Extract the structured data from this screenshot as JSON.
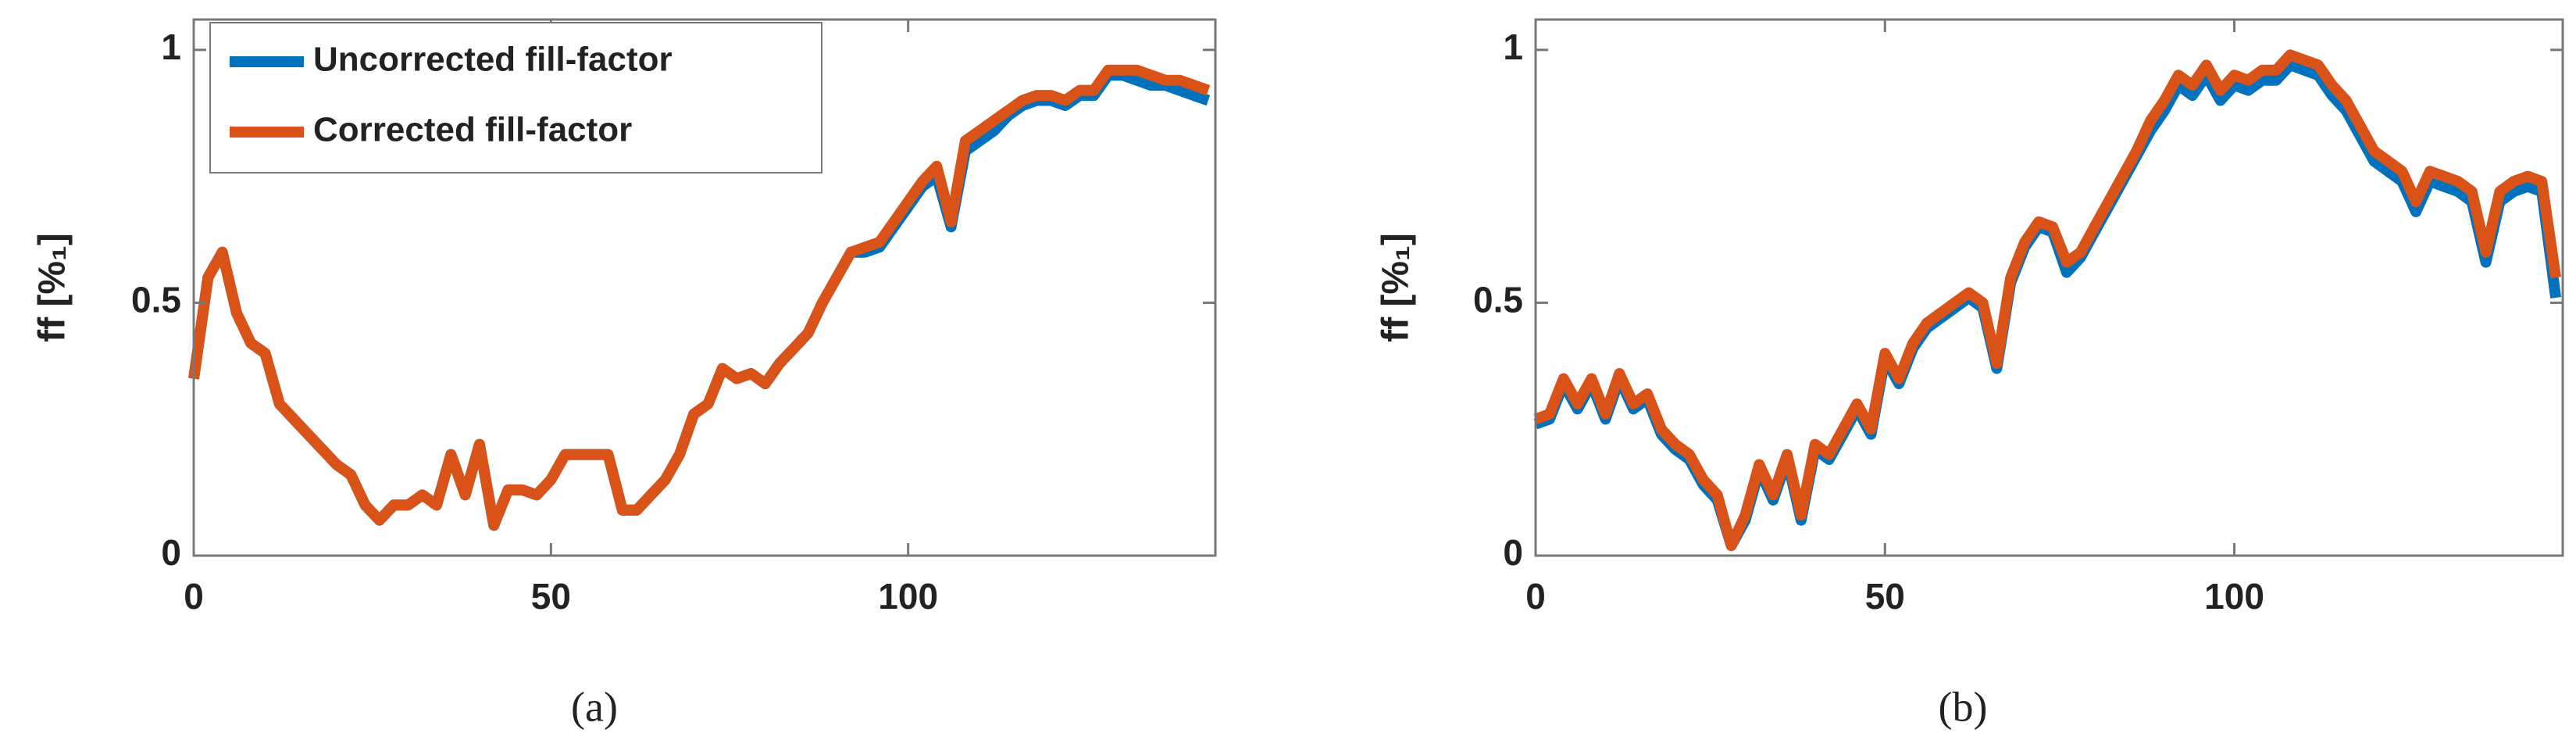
{
  "chart_data": [
    {
      "type": "line",
      "ylabel": "ff [%₁]",
      "caption": "(a)",
      "legend": "upper left",
      "xlim": [
        0,
        143
      ],
      "ylim": [
        0,
        1.06
      ],
      "xticks": [
        0,
        50,
        100
      ],
      "yticks": [
        0,
        0.5,
        1
      ],
      "x": [
        0,
        2,
        4,
        6,
        8,
        10,
        12,
        14,
        16,
        18,
        20,
        22,
        24,
        26,
        28,
        30,
        32,
        34,
        36,
        38,
        40,
        42,
        44,
        46,
        48,
        50,
        52,
        54,
        56,
        58,
        60,
        62,
        64,
        66,
        68,
        70,
        72,
        74,
        76,
        78,
        80,
        82,
        84,
        86,
        88,
        90,
        92,
        94,
        96,
        98,
        100,
        102,
        104,
        106,
        108,
        110,
        112,
        114,
        116,
        118,
        120,
        122,
        124,
        126,
        128,
        130,
        132,
        134,
        136,
        138,
        140,
        142
      ],
      "series": [
        {
          "name": "Uncorrected fill-factor",
          "color": "#0072BD",
          "values": [
            0.35,
            0.55,
            0.6,
            0.48,
            0.42,
            0.4,
            0.3,
            0.27,
            0.24,
            0.21,
            0.18,
            0.16,
            0.1,
            0.07,
            0.1,
            0.1,
            0.12,
            0.1,
            0.2,
            0.12,
            0.22,
            0.06,
            0.13,
            0.13,
            0.12,
            0.15,
            0.2,
            0.2,
            0.2,
            0.2,
            0.09,
            0.09,
            0.12,
            0.15,
            0.2,
            0.28,
            0.3,
            0.37,
            0.35,
            0.36,
            0.34,
            0.38,
            0.41,
            0.44,
            0.5,
            0.55,
            0.6,
            0.6,
            0.61,
            0.65,
            0.69,
            0.73,
            0.75,
            0.65,
            0.8,
            0.82,
            0.84,
            0.87,
            0.89,
            0.9,
            0.9,
            0.89,
            0.91,
            0.91,
            0.95,
            0.95,
            0.94,
            0.93,
            0.93,
            0.92,
            0.91,
            0.9
          ]
        },
        {
          "name": "Corrected fill-factor",
          "color": "#D95319",
          "values": [
            0.35,
            0.55,
            0.6,
            0.48,
            0.42,
            0.4,
            0.3,
            0.27,
            0.24,
            0.21,
            0.18,
            0.16,
            0.1,
            0.07,
            0.1,
            0.1,
            0.12,
            0.1,
            0.2,
            0.12,
            0.22,
            0.06,
            0.13,
            0.13,
            0.12,
            0.15,
            0.2,
            0.2,
            0.2,
            0.2,
            0.09,
            0.09,
            0.12,
            0.15,
            0.2,
            0.28,
            0.3,
            0.37,
            0.35,
            0.36,
            0.34,
            0.38,
            0.41,
            0.44,
            0.5,
            0.55,
            0.6,
            0.61,
            0.62,
            0.66,
            0.7,
            0.74,
            0.77,
            0.66,
            0.82,
            0.84,
            0.86,
            0.88,
            0.9,
            0.91,
            0.91,
            0.9,
            0.92,
            0.92,
            0.96,
            0.96,
            0.96,
            0.95,
            0.94,
            0.94,
            0.93,
            0.92
          ]
        }
      ]
    },
    {
      "type": "line",
      "ylabel": "ff [%₁]",
      "caption": "(b)",
      "xlim": [
        0,
        147
      ],
      "ylim": [
        0,
        1.06
      ],
      "xticks": [
        0,
        50,
        100
      ],
      "yticks": [
        0,
        0.5,
        1
      ],
      "x": [
        0,
        2,
        4,
        6,
        8,
        10,
        12,
        14,
        16,
        18,
        20,
        22,
        24,
        26,
        28,
        30,
        32,
        34,
        36,
        38,
        40,
        42,
        44,
        46,
        48,
        50,
        52,
        54,
        56,
        58,
        60,
        62,
        64,
        66,
        68,
        70,
        72,
        74,
        76,
        78,
        80,
        82,
        84,
        86,
        88,
        90,
        92,
        94,
        96,
        98,
        100,
        102,
        104,
        106,
        108,
        110,
        112,
        114,
        116,
        118,
        120,
        122,
        124,
        126,
        128,
        130,
        132,
        134,
        136,
        138,
        140,
        142,
        144,
        146
      ],
      "series": [
        {
          "color": "#0072BD",
          "values": [
            0.26,
            0.27,
            0.34,
            0.29,
            0.34,
            0.27,
            0.35,
            0.29,
            0.31,
            0.24,
            0.21,
            0.19,
            0.14,
            0.11,
            0.02,
            0.07,
            0.17,
            0.11,
            0.19,
            0.07,
            0.21,
            0.19,
            0.24,
            0.29,
            0.24,
            0.39,
            0.34,
            0.41,
            0.45,
            0.47,
            0.49,
            0.51,
            0.49,
            0.37,
            0.54,
            0.61,
            0.65,
            0.64,
            0.56,
            0.59,
            0.64,
            0.69,
            0.74,
            0.79,
            0.84,
            0.88,
            0.93,
            0.91,
            0.95,
            0.9,
            0.93,
            0.92,
            0.94,
            0.94,
            0.97,
            0.96,
            0.95,
            0.91,
            0.88,
            0.83,
            0.78,
            0.76,
            0.74,
            0.68,
            0.74,
            0.73,
            0.72,
            0.7,
            0.58,
            0.7,
            0.72,
            0.73,
            0.72,
            0.51
          ]
        },
        {
          "color": "#D95319",
          "values": [
            0.27,
            0.28,
            0.35,
            0.3,
            0.35,
            0.28,
            0.36,
            0.3,
            0.32,
            0.25,
            0.22,
            0.2,
            0.15,
            0.12,
            0.02,
            0.08,
            0.18,
            0.12,
            0.2,
            0.08,
            0.22,
            0.2,
            0.25,
            0.3,
            0.25,
            0.4,
            0.35,
            0.42,
            0.46,
            0.48,
            0.5,
            0.52,
            0.5,
            0.38,
            0.55,
            0.62,
            0.66,
            0.65,
            0.58,
            0.6,
            0.65,
            0.7,
            0.75,
            0.8,
            0.86,
            0.9,
            0.95,
            0.93,
            0.97,
            0.92,
            0.95,
            0.94,
            0.96,
            0.96,
            0.99,
            0.98,
            0.97,
            0.93,
            0.9,
            0.85,
            0.8,
            0.78,
            0.76,
            0.7,
            0.76,
            0.75,
            0.74,
            0.72,
            0.6,
            0.72,
            0.74,
            0.75,
            0.74,
            0.55
          ]
        }
      ]
    }
  ]
}
